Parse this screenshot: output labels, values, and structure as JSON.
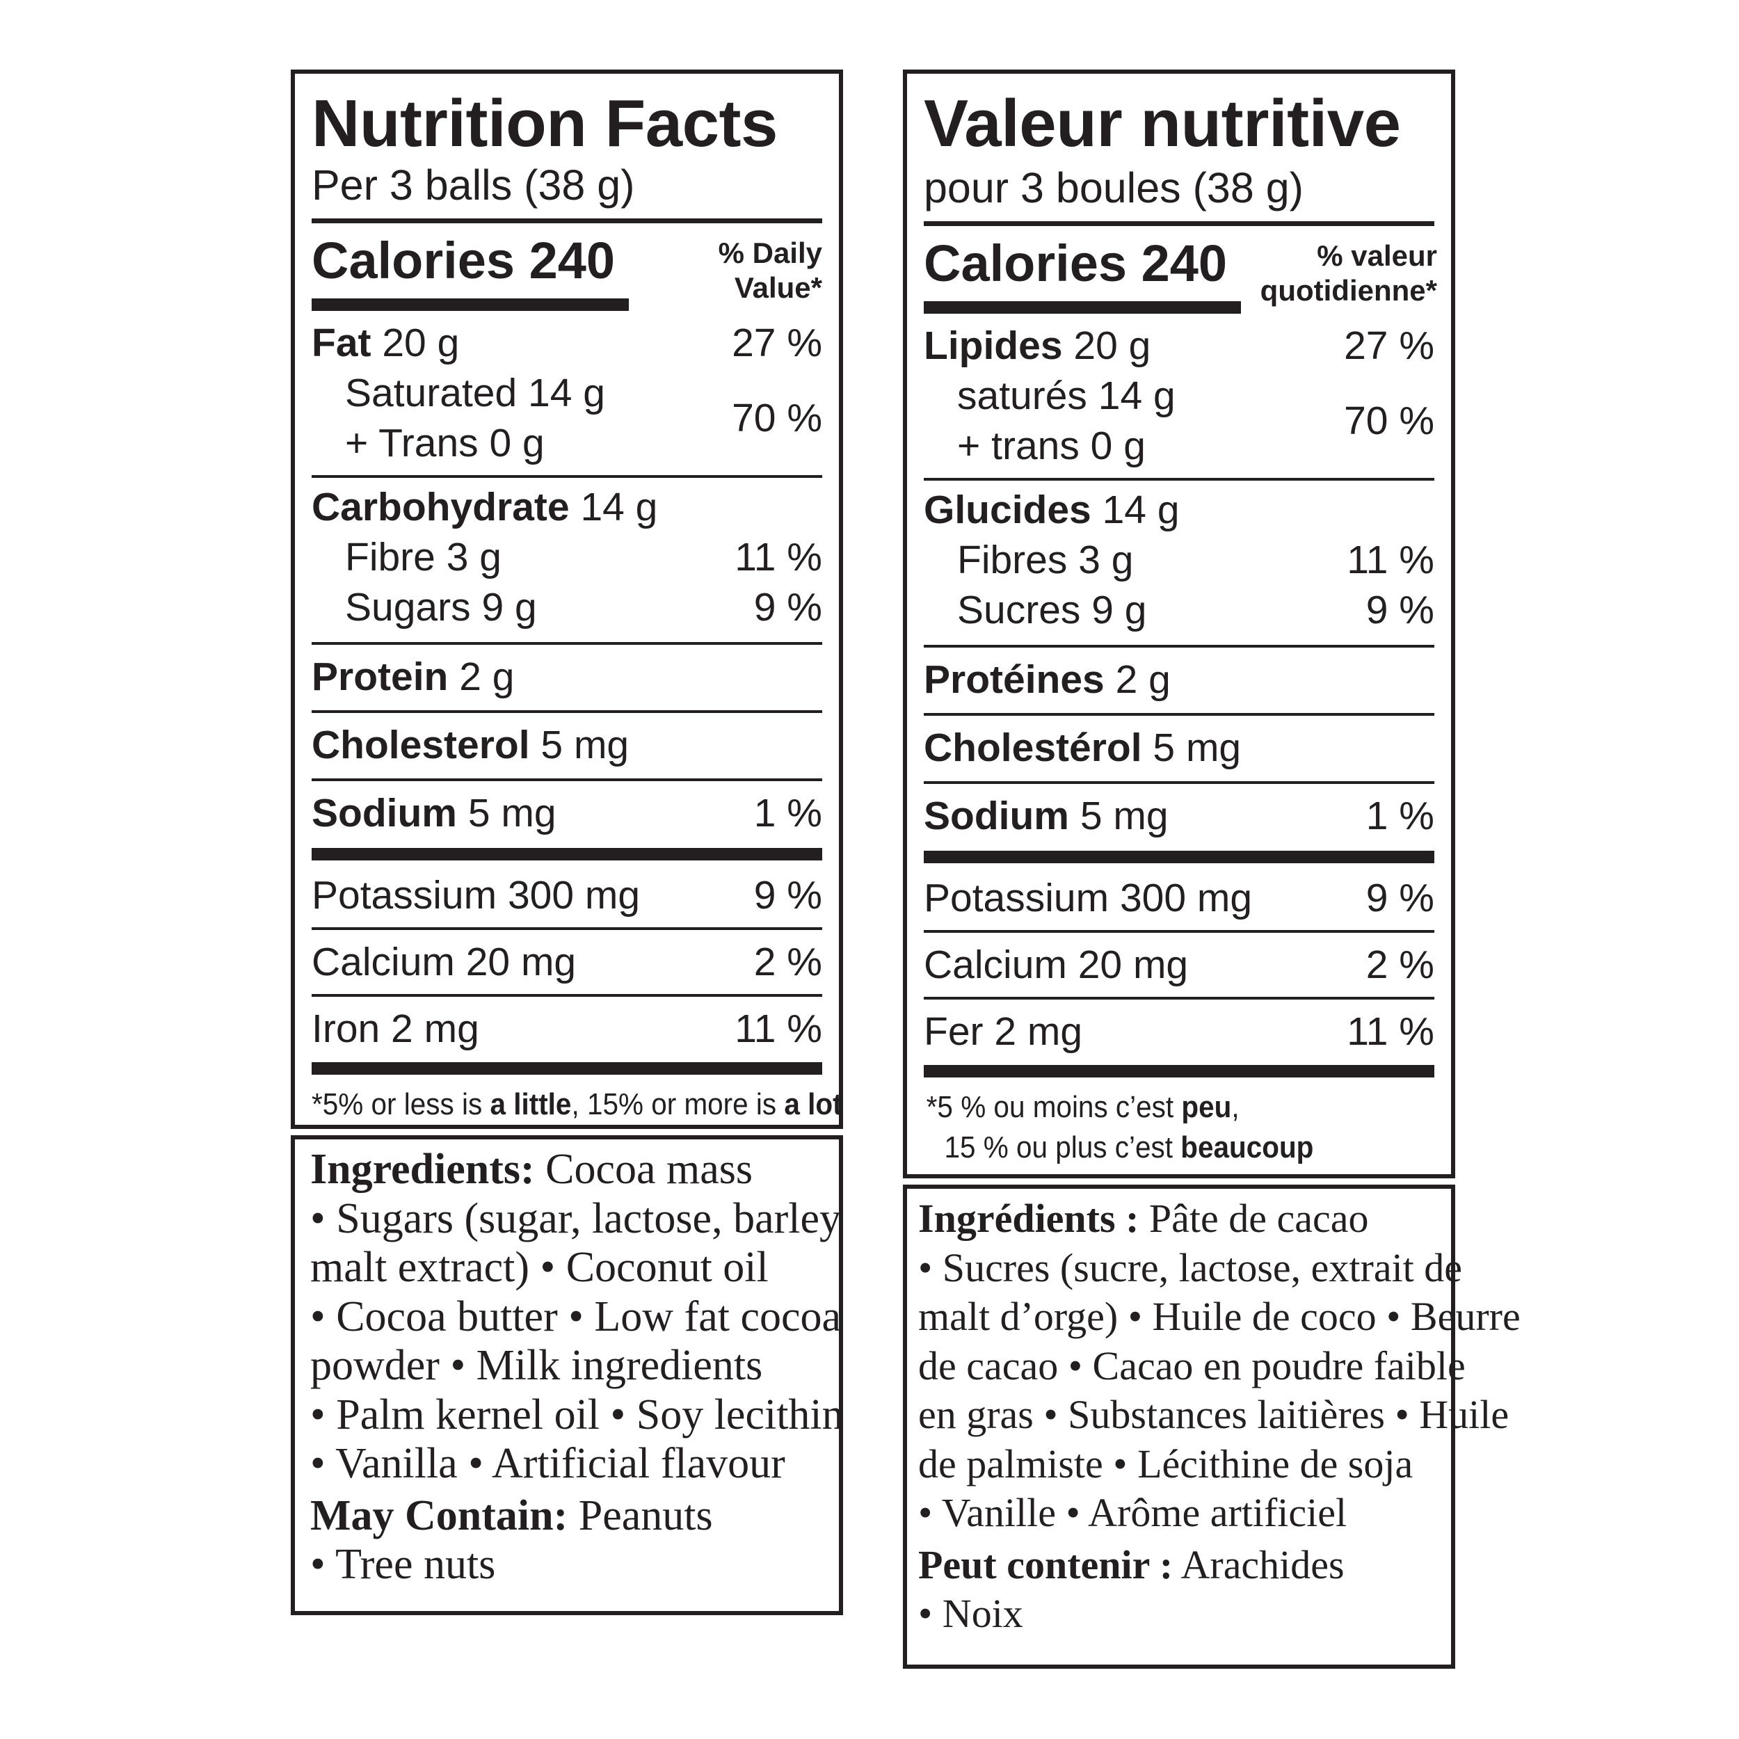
{
  "english": {
    "title": "Nutrition Facts",
    "serving": "Per 3 balls (38 g)",
    "calories_label": "Calories 240",
    "dv_line1": "% Daily",
    "dv_line2": "Value*",
    "fat": {
      "label": "Fat",
      "amount": "20 g",
      "pct": "27 %"
    },
    "saturated": "Saturated 14 g",
    "trans": "+ Trans 0 g",
    "sat_trans_pct": "70 %",
    "carb": {
      "label": "Carbohydrate",
      "amount": "14 g"
    },
    "fibre": {
      "text": "Fibre 3 g",
      "pct": "11 %"
    },
    "sugars": {
      "text": "Sugars 9 g",
      "pct": "9 %"
    },
    "protein": {
      "label": "Protein",
      "amount": "2 g"
    },
    "cholesterol": {
      "label": "Cholesterol",
      "amount": "5 mg"
    },
    "sodium": {
      "label": "Sodium",
      "amount": "5 mg",
      "pct": "1 %"
    },
    "potassium": {
      "text": "Potassium 300 mg",
      "pct": "9 %"
    },
    "calcium": {
      "text": "Calcium 20 mg",
      "pct": "2 %"
    },
    "iron": {
      "text": "Iron 2 mg",
      "pct": "11 %"
    },
    "footnote": {
      "p1": "*5% or less is ",
      "b1": "a little",
      "p2": ", 15% or more is ",
      "b2": "a lot"
    },
    "ingredients_label": "Ingredients:",
    "ingredients_lines": [
      " Cocoa mass",
      "• Sugars (sugar, lactose, barley",
      "malt extract) • Coconut oil",
      "• Cocoa butter • Low fat cocoa",
      "powder • Milk ingredients",
      "• Palm kernel oil • Soy lecithin",
      "• Vanilla • Artificial flavour"
    ],
    "may_contain_label": "May Contain:",
    "may_contain_lines": [
      " Peanuts",
      "• Tree nuts"
    ]
  },
  "french": {
    "title": "Valeur nutritive",
    "serving": "pour 3 boules (38 g)",
    "calories_label": "Calories 240",
    "dv_line1": "% valeur",
    "dv_line2": "quotidienne*",
    "fat": {
      "label": "Lipides",
      "amount": "20 g",
      "pct": "27 %"
    },
    "saturated": "saturés 14 g",
    "trans": "+ trans 0 g",
    "sat_trans_pct": "70 %",
    "carb": {
      "label": "Glucides",
      "amount": "14 g"
    },
    "fibre": {
      "text": "Fibres 3 g",
      "pct": "11 %"
    },
    "sugars": {
      "text": "Sucres 9 g",
      "pct": "9 %"
    },
    "protein": {
      "label": "Protéines",
      "amount": "2 g"
    },
    "cholesterol": {
      "label": "Cholestérol",
      "amount": "5 mg"
    },
    "sodium": {
      "label": "Sodium",
      "amount": "5 mg",
      "pct": "1 %"
    },
    "potassium": {
      "text": "Potassium 300 mg",
      "pct": "9 %"
    },
    "calcium": {
      "text": "Calcium 20 mg",
      "pct": "2 %"
    },
    "iron": {
      "text": "Fer 2 mg",
      "pct": "11 %"
    },
    "footnote": {
      "p1": "*5 % ou moins c’est ",
      "b1": "peu",
      "p2": ",",
      "p3": "15 % ou plus c’est ",
      "b2": "beaucoup"
    },
    "ingredients_label": "Ingrédients :",
    "ingredients_lines": [
      " Pâte de cacao",
      "• Sucres (sucre, lactose, extrait de",
      "malt d’orge) • Huile de coco • Beurre",
      "de cacao • Cacao en poudre faible",
      "en gras • Substances laitières • Huile",
      "de palmiste • Lécithine de soja",
      "• Vanille • Arôme artificiel"
    ],
    "may_contain_label": "Peut contenir :",
    "may_contain_lines": [
      " Arachides",
      "• Noix"
    ]
  }
}
